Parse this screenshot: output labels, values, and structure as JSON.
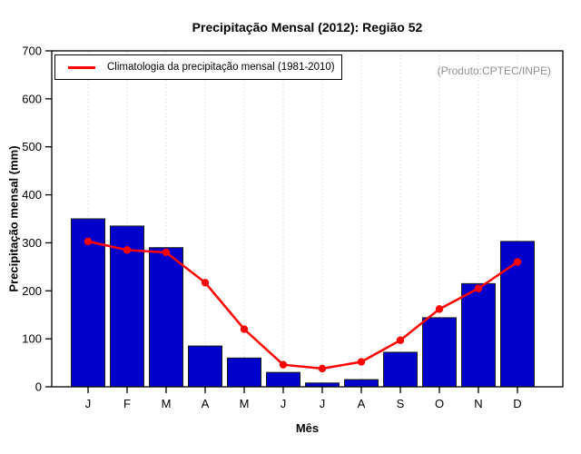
{
  "title": "Precipitação Mensal (2012): Região 52",
  "annotation": "(Produto:CPTEC/INPE)",
  "legend": {
    "label": "Climatologia da precipitação mensal (1981-2010)"
  },
  "axes": {
    "xlabel": "Mês",
    "ylabel": "Precipitação mensal (mm)"
  },
  "chart_data": {
    "type": "bar",
    "title": "Precipitação Mensal (2012): Região 52",
    "xlabel": "Mês",
    "ylabel": "Precipitação mensal (mm)",
    "ylim": [
      0,
      700
    ],
    "yticks": [
      0,
      100,
      200,
      300,
      400,
      500,
      600,
      700
    ],
    "categories": [
      "J",
      "F",
      "M",
      "A",
      "M",
      "J",
      "J",
      "A",
      "S",
      "O",
      "N",
      "D"
    ],
    "series": [
      {
        "name": "Precipitação mensal 2012",
        "type": "bar",
        "color": "#0000CD",
        "values": [
          350,
          335,
          290,
          85,
          60,
          30,
          8,
          15,
          72,
          144,
          215,
          303
        ]
      },
      {
        "name": "Climatologia da precipitação mensal (1981-2010)",
        "type": "line",
        "color": "#FF0000",
        "values": [
          303,
          285,
          280,
          217,
          120,
          46,
          38,
          52,
          97,
          162,
          205,
          260
        ]
      }
    ],
    "grid": "vertical-dotted",
    "legend_position": "top-left",
    "annotation": "(Produto:CPTEC/INPE)"
  },
  "colors": {
    "bar": "#0000CD",
    "bar_border": "#1A1A1A",
    "line": "#FF0000",
    "grid": "#DBDBDB",
    "axis": "#000000",
    "annotation": "#909090"
  }
}
